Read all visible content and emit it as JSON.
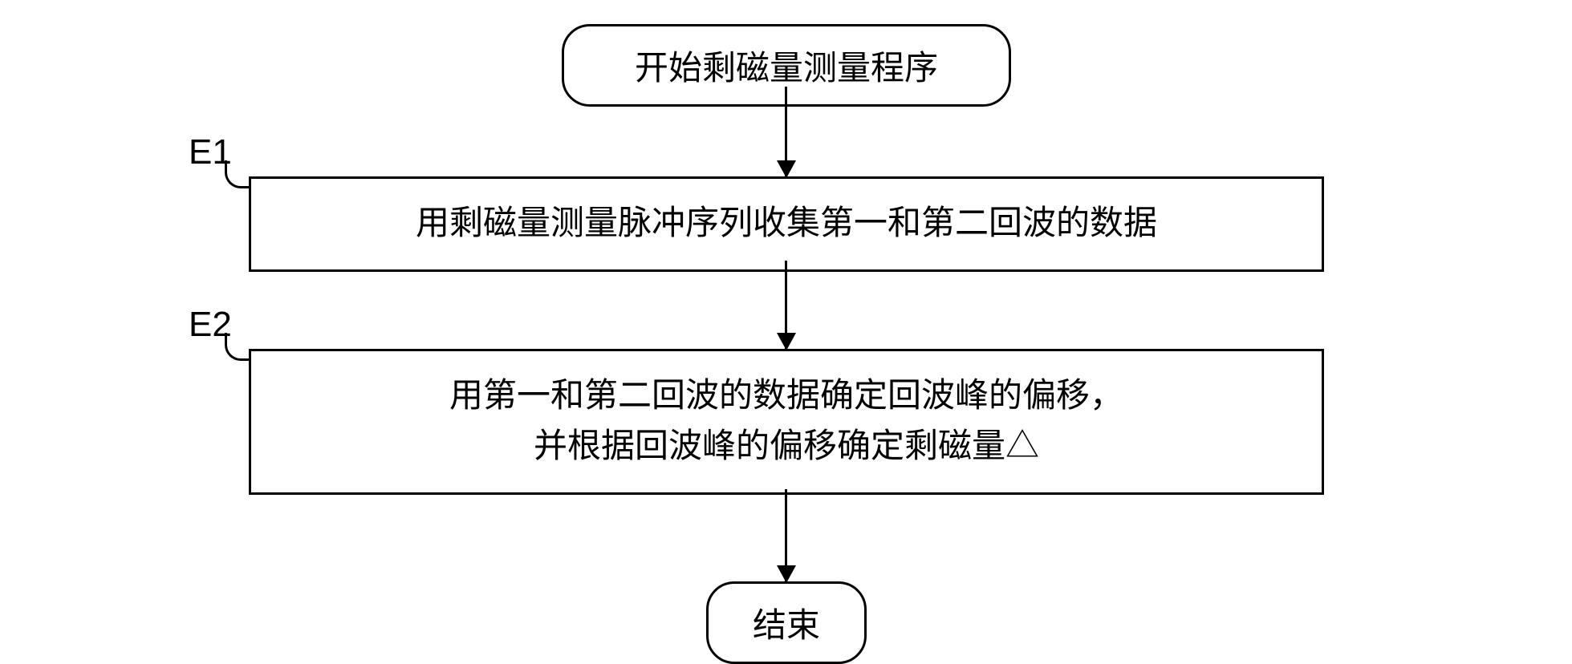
{
  "flowchart": {
    "type": "flowchart",
    "background_color": "#ffffff",
    "border_color": "#000000",
    "border_width": 3,
    "font_family": "KaiTi",
    "font_size": 42,
    "nodes": {
      "start": {
        "type": "terminal",
        "text": "开始剩磁量测量程序",
        "border_radius": 35
      },
      "e1": {
        "type": "process",
        "label": "E1",
        "text": "用剩磁量测量脉冲序列收集第一和第二回波的数据"
      },
      "e2": {
        "type": "process",
        "label": "E2",
        "line1": "用第一和第二回波的数据确定回波峰的偏移，",
        "line2": "并根据回波峰的偏移确定剩磁量△"
      },
      "end": {
        "type": "terminal",
        "text": "结束",
        "border_radius": 35
      }
    },
    "edges": [
      {
        "from": "start",
        "to": "e1"
      },
      {
        "from": "e1",
        "to": "e2"
      },
      {
        "from": "e2",
        "to": "end"
      }
    ],
    "arrow_style": {
      "line_width": 3,
      "head_width": 24,
      "head_height": 22,
      "color": "#000000"
    }
  }
}
